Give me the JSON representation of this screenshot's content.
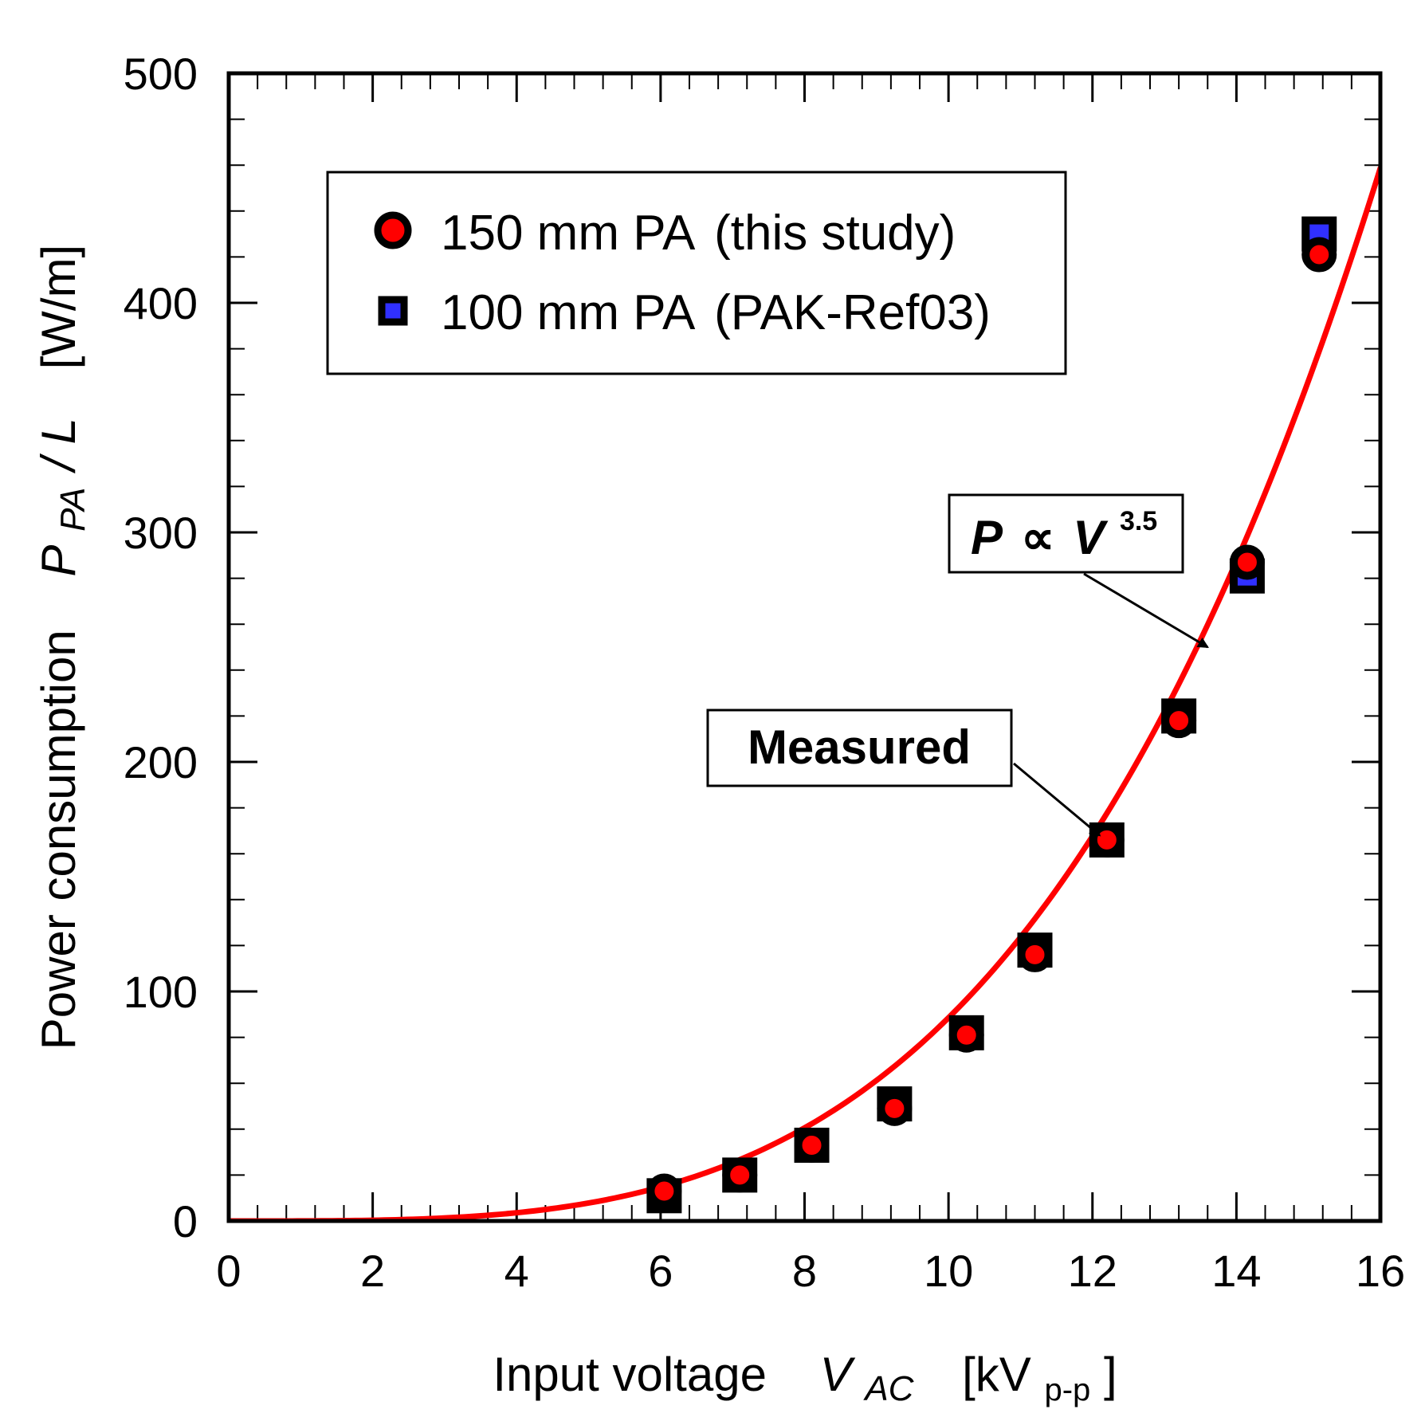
{
  "chart_data": {
    "type": "scatter",
    "x_label": {
      "prefix": "Input voltage",
      "symbol": "V",
      "symbol_sub": "AC",
      "unit_open": "[kV",
      "unit_sub": "p-p",
      "unit_close": "]"
    },
    "y_label": {
      "prefix": "Power consumption",
      "symbol": "P",
      "symbol_sub": "PA",
      "slash": "/ L",
      "unit": "[W/m]"
    },
    "xlim": [
      0,
      16
    ],
    "ylim": [
      0,
      500
    ],
    "x_ticks": [
      "0",
      "2",
      "4",
      "6",
      "8",
      "10",
      "12",
      "14",
      "16"
    ],
    "y_ticks": [
      "0",
      "100",
      "200",
      "300",
      "400",
      "500"
    ],
    "grid": false,
    "legend_position": "top-left",
    "series": [
      {
        "name": "150 mm PA (this study)",
        "legend_main": "150 mm PA",
        "legend_paren": "(this study)",
        "marker": "circle",
        "fill": "#ff0000",
        "stroke": "#000000",
        "points": [
          [
            6.05,
            13
          ],
          [
            7.1,
            20
          ],
          [
            8.1,
            33
          ],
          [
            9.25,
            49
          ],
          [
            10.25,
            81
          ],
          [
            11.2,
            116
          ],
          [
            12.2,
            166
          ],
          [
            13.2,
            218
          ],
          [
            14.15,
            287
          ],
          [
            15.15,
            421
          ]
        ]
      },
      {
        "name": "100 mm PA (PAK-Ref03)",
        "legend_main": "100 mm PA",
        "legend_paren": "(PAK-Ref03)",
        "marker": "square",
        "fill": "#3030ff",
        "stroke": "#000000",
        "points": [
          [
            6.05,
            11
          ],
          [
            7.1,
            20
          ],
          [
            8.1,
            33
          ],
          [
            9.25,
            51
          ],
          [
            10.25,
            82
          ],
          [
            11.2,
            118
          ],
          [
            12.2,
            166
          ],
          [
            13.2,
            220
          ],
          [
            14.15,
            281
          ],
          [
            15.15,
            430
          ]
        ]
      }
    ],
    "curve": {
      "name": "P ∝ V^3.5",
      "color": "#ff0000",
      "exponent": 3.5,
      "coefficient": 0.028,
      "x_range": [
        0,
        16
      ]
    },
    "annotations": [
      {
        "id": "fit",
        "text_main": "P",
        "text_prop": "∝",
        "text_v": "V",
        "text_sup": "3.5",
        "target": [
          13.6,
          250
        ]
      },
      {
        "id": "measured",
        "text": "Measured",
        "target": [
          12.1,
          168
        ]
      }
    ]
  }
}
